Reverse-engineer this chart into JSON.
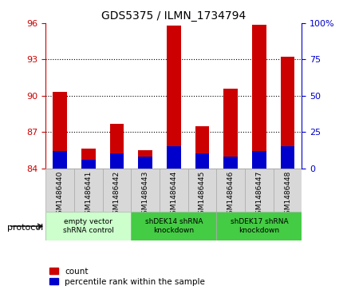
{
  "title": "GDS5375 / ILMN_1734794",
  "samples": [
    "GSM1486440",
    "GSM1486441",
    "GSM1486442",
    "GSM1486443",
    "GSM1486444",
    "GSM1486445",
    "GSM1486446",
    "GSM1486447",
    "GSM1486448"
  ],
  "count_values": [
    90.3,
    85.6,
    87.7,
    85.5,
    95.8,
    87.5,
    90.6,
    95.9,
    93.2
  ],
  "percentile_values": [
    12,
    6,
    10,
    8,
    15,
    10,
    8,
    12,
    15
  ],
  "bar_bottom": 84,
  "ylim_left": [
    84,
    96
  ],
  "ylim_right": [
    0,
    100
  ],
  "yticks_left": [
    84,
    87,
    90,
    93,
    96
  ],
  "yticks_right": [
    0,
    25,
    50,
    75,
    100
  ],
  "yticklabels_right": [
    "0",
    "25",
    "50",
    "75",
    "100%"
  ],
  "bar_color_red": "#cc0000",
  "bar_color_blue": "#0000cc",
  "protocols": [
    {
      "label": "empty vector\nshRNA control",
      "start": 0,
      "end": 3,
      "color": "#ccffcc"
    },
    {
      "label": "shDEK14 shRNA\nknockdown",
      "start": 3,
      "end": 6,
      "color": "#44cc44"
    },
    {
      "label": "shDEK17 shRNA\nknockdown",
      "start": 6,
      "end": 9,
      "color": "#44cc44"
    }
  ],
  "legend_count_label": "count",
  "legend_percentile_label": "percentile rank within the sample",
  "protocol_label": "protocol"
}
